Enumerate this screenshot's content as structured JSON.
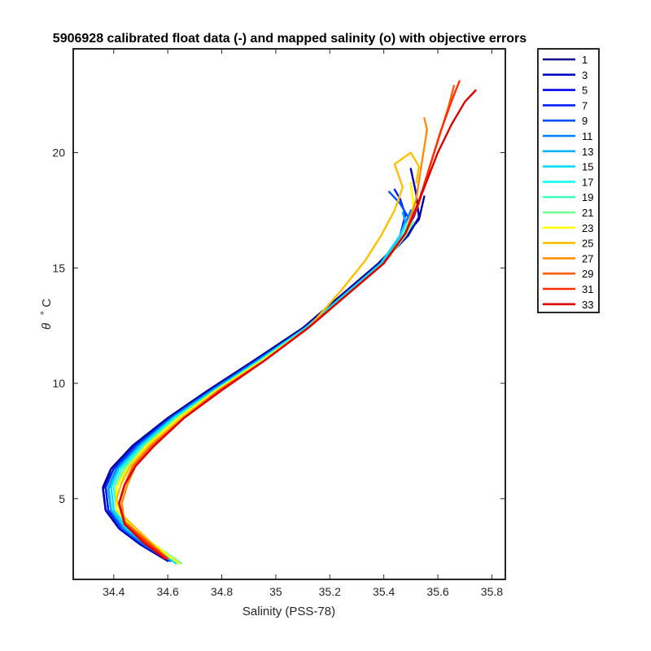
{
  "chart_data": {
    "type": "line",
    "title": "5906928 calibrated float data (-) and mapped salinity (o) with objective errors",
    "xlabel": "Salinity (PSS-78)",
    "ylabel_symbol": "θ",
    "ylabel_unit": "˚ C",
    "xlim": [
      34.25,
      35.85
    ],
    "ylim": [
      1.5,
      24.5
    ],
    "xticks": [
      34.4,
      34.6,
      34.8,
      35,
      35.2,
      35.4,
      35.6,
      35.8
    ],
    "xtick_labels": [
      "34.4",
      "34.6",
      "34.8",
      "35",
      "35.2",
      "35.4",
      "35.6",
      "35.8"
    ],
    "yticks": [
      5,
      10,
      15,
      20
    ],
    "ytick_labels": [
      "5",
      "10",
      "15",
      "20"
    ],
    "grid": false,
    "legend_position": "outside-top-right",
    "series": [
      {
        "name": "1",
        "color": "#00008F",
        "x": [
          34.6,
          34.5,
          34.42,
          34.37,
          34.36,
          34.39,
          34.47,
          34.6,
          34.75,
          34.92,
          35.1,
          35.25,
          35.38,
          35.48,
          35.53,
          35.54,
          35.55
        ],
        "y": [
          2.3,
          3.0,
          3.7,
          4.5,
          5.5,
          6.3,
          7.3,
          8.5,
          9.7,
          11.0,
          12.4,
          13.9,
          15.2,
          16.4,
          17.1,
          17.6,
          18.1
        ]
      },
      {
        "name": "3",
        "color": "#0000BF",
        "x": [
          34.6,
          34.5,
          34.42,
          34.37,
          34.36,
          34.4,
          34.48,
          34.61,
          34.76,
          34.93,
          35.11,
          35.26,
          35.39,
          35.49,
          35.53,
          35.52,
          35.5
        ],
        "y": [
          2.3,
          3.0,
          3.7,
          4.5,
          5.4,
          6.3,
          7.3,
          8.5,
          9.7,
          11.0,
          12.4,
          13.9,
          15.2,
          16.4,
          17.2,
          18.2,
          19.3
        ]
      },
      {
        "name": "5",
        "color": "#0000EF",
        "x": [
          34.61,
          34.51,
          34.43,
          34.38,
          34.37,
          34.4,
          34.48,
          34.61,
          34.76,
          34.93,
          35.11,
          35.26,
          35.39,
          35.47,
          35.51,
          35.53,
          35.54
        ],
        "y": [
          2.3,
          3.0,
          3.7,
          4.5,
          5.5,
          6.3,
          7.3,
          8.5,
          9.7,
          11.0,
          12.4,
          13.9,
          15.2,
          16.4,
          17.2,
          17.8,
          18.3
        ]
      },
      {
        "name": "7",
        "color": "#0020FF",
        "x": [
          34.61,
          34.51,
          34.43,
          34.38,
          34.37,
          34.4,
          34.48,
          34.61,
          34.76,
          34.93,
          35.11,
          35.26,
          35.39,
          35.46,
          35.48,
          35.46,
          35.44
        ],
        "y": [
          2.3,
          3.0,
          3.7,
          4.5,
          5.5,
          6.3,
          7.3,
          8.5,
          9.7,
          11.0,
          12.4,
          13.9,
          15.2,
          16.4,
          17.3,
          18.0,
          18.4
        ]
      },
      {
        "name": "9",
        "color": "#0050FF",
        "x": [
          34.61,
          34.51,
          34.43,
          34.39,
          34.38,
          34.41,
          34.49,
          34.61,
          34.76,
          34.93,
          35.11,
          35.26,
          35.39,
          35.46,
          35.49,
          35.46,
          35.42
        ],
        "y": [
          2.3,
          3.0,
          3.7,
          4.5,
          5.4,
          6.3,
          7.3,
          8.5,
          9.7,
          11.0,
          12.4,
          13.9,
          15.2,
          16.4,
          17.2,
          17.8,
          18.3
        ]
      },
      {
        "name": "11",
        "color": "#0080FF",
        "x": [
          34.62,
          34.52,
          34.44,
          34.39,
          34.38,
          34.41,
          34.49,
          34.62,
          34.77,
          34.94,
          35.11,
          35.26,
          35.39,
          35.46,
          35.49,
          35.5
        ],
        "y": [
          2.3,
          3.0,
          3.7,
          4.5,
          5.5,
          6.3,
          7.3,
          8.5,
          9.7,
          11.0,
          12.4,
          13.9,
          15.2,
          16.4,
          17.2,
          17.5
        ]
      },
      {
        "name": "13",
        "color": "#00AFFF",
        "x": [
          34.62,
          34.52,
          34.44,
          34.39,
          34.38,
          34.42,
          34.5,
          34.62,
          34.77,
          34.94,
          35.11,
          35.26,
          35.39,
          35.46,
          35.48,
          35.47
        ],
        "y": [
          2.3,
          3.0,
          3.7,
          4.5,
          5.5,
          6.3,
          7.3,
          8.5,
          9.7,
          11.0,
          12.4,
          13.9,
          15.2,
          16.4,
          17.0,
          17.4
        ]
      },
      {
        "name": "15",
        "color": "#00DFFF",
        "x": [
          34.63,
          34.53,
          34.45,
          34.4,
          34.39,
          34.42,
          34.5,
          34.62,
          34.77,
          34.94,
          35.11,
          35.26,
          35.39,
          35.46,
          35.48
        ],
        "y": [
          2.2,
          3.0,
          3.7,
          4.5,
          5.5,
          6.3,
          7.3,
          8.5,
          9.7,
          11.0,
          12.4,
          13.9,
          15.2,
          16.4,
          16.9
        ]
      },
      {
        "name": "17",
        "color": "#10FFEF",
        "x": [
          34.64,
          34.54,
          34.46,
          34.41,
          34.4,
          34.43,
          34.51,
          34.63,
          34.78,
          34.94,
          35.12,
          35.27,
          35.4,
          35.47,
          35.49
        ],
        "y": [
          2.2,
          3.0,
          3.7,
          4.5,
          5.5,
          6.3,
          7.3,
          8.5,
          9.7,
          11.0,
          12.4,
          13.9,
          15.2,
          16.4,
          16.9
        ]
      },
      {
        "name": "19",
        "color": "#40FFBF",
        "x": [
          34.64,
          34.55,
          34.46,
          34.41,
          34.4,
          34.43,
          34.51,
          34.63,
          34.78,
          34.95,
          35.12,
          35.27,
          35.4,
          35.47,
          35.5
        ],
        "y": [
          2.2,
          3.0,
          3.7,
          4.5,
          5.5,
          6.3,
          7.3,
          8.5,
          9.7,
          11.0,
          12.4,
          13.9,
          15.2,
          16.4,
          16.9
        ]
      },
      {
        "name": "21",
        "color": "#70FF8F",
        "x": [
          34.65,
          34.55,
          34.47,
          34.41,
          34.41,
          34.44,
          34.52,
          34.64,
          34.78,
          34.95,
          35.12,
          35.27,
          35.4,
          35.48,
          35.51
        ],
        "y": [
          2.2,
          3.0,
          3.7,
          4.5,
          5.5,
          6.3,
          7.3,
          8.5,
          9.7,
          11.0,
          12.4,
          13.9,
          15.2,
          16.4,
          17.0
        ]
      },
      {
        "name": "23",
        "color": "#FFFF00",
        "x": [
          34.64,
          34.55,
          34.47,
          34.41,
          34.41,
          34.45,
          34.52,
          34.64,
          34.78,
          34.95,
          35.12,
          35.27,
          35.4,
          35.48,
          35.51,
          35.5
        ],
        "y": [
          2.2,
          3.0,
          3.7,
          4.5,
          5.5,
          6.3,
          7.3,
          8.5,
          9.7,
          11.0,
          12.4,
          13.9,
          15.2,
          16.5,
          17.6,
          18.7
        ]
      },
      {
        "name": "25",
        "color": "#FFBF00",
        "x": [
          34.6,
          34.52,
          34.43,
          34.41,
          34.43,
          34.46,
          34.53,
          34.65,
          34.79,
          34.96,
          35.12,
          35.24,
          35.33,
          35.39,
          35.44,
          35.47,
          35.44,
          35.5,
          35.53,
          35.52
        ],
        "y": [
          2.4,
          3.3,
          4.3,
          5.0,
          5.7,
          6.4,
          7.3,
          8.5,
          9.7,
          11.0,
          12.4,
          14.0,
          15.3,
          16.4,
          17.5,
          18.5,
          19.5,
          20.0,
          19.4,
          18.7
        ]
      },
      {
        "name": "27",
        "color": "#FF8F00",
        "x": [
          34.6,
          34.52,
          34.44,
          34.43,
          34.45,
          34.48,
          34.55,
          34.66,
          34.79,
          34.96,
          35.12,
          35.27,
          35.4,
          35.48,
          35.52,
          35.54,
          35.56,
          35.55
        ],
        "y": [
          2.4,
          3.2,
          4.0,
          4.8,
          5.6,
          6.4,
          7.3,
          8.5,
          9.7,
          11.0,
          12.4,
          13.9,
          15.2,
          16.5,
          18.0,
          19.5,
          21.0,
          21.5
        ]
      },
      {
        "name": "29",
        "color": "#FF5F00",
        "x": [
          34.6,
          34.52,
          34.44,
          34.42,
          34.44,
          34.47,
          34.54,
          34.66,
          34.79,
          34.96,
          35.12,
          35.27,
          35.4,
          35.48,
          35.53,
          35.56,
          35.6,
          35.64,
          35.66
        ],
        "y": [
          2.4,
          3.2,
          4.0,
          4.8,
          5.6,
          6.4,
          7.3,
          8.5,
          9.7,
          11.0,
          12.4,
          13.9,
          15.2,
          16.5,
          17.8,
          19.0,
          20.5,
          22.0,
          22.9
        ]
      },
      {
        "name": "31",
        "color": "#FF2F00",
        "x": [
          34.6,
          34.52,
          34.44,
          34.42,
          34.44,
          34.48,
          34.55,
          34.66,
          34.8,
          34.96,
          35.12,
          35.27,
          35.4,
          35.48,
          35.53,
          35.57,
          35.61,
          35.65,
          35.68
        ],
        "y": [
          2.4,
          3.1,
          3.9,
          4.8,
          5.6,
          6.4,
          7.3,
          8.5,
          9.7,
          11.0,
          12.4,
          13.9,
          15.2,
          16.5,
          17.9,
          19.4,
          20.9,
          22.2,
          23.1
        ]
      },
      {
        "name": "33",
        "color": "#E00000",
        "x": [
          34.59,
          34.51,
          34.44,
          34.42,
          34.44,
          34.48,
          34.55,
          34.66,
          34.8,
          34.96,
          35.12,
          35.27,
          35.4,
          35.48,
          35.52,
          35.56,
          35.6,
          35.65,
          35.7,
          35.74
        ],
        "y": [
          2.4,
          3.1,
          3.9,
          4.8,
          5.6,
          6.4,
          7.3,
          8.5,
          9.7,
          11.0,
          12.4,
          13.9,
          15.2,
          16.5,
          17.6,
          18.8,
          20.0,
          21.2,
          22.2,
          22.7
        ]
      }
    ]
  }
}
